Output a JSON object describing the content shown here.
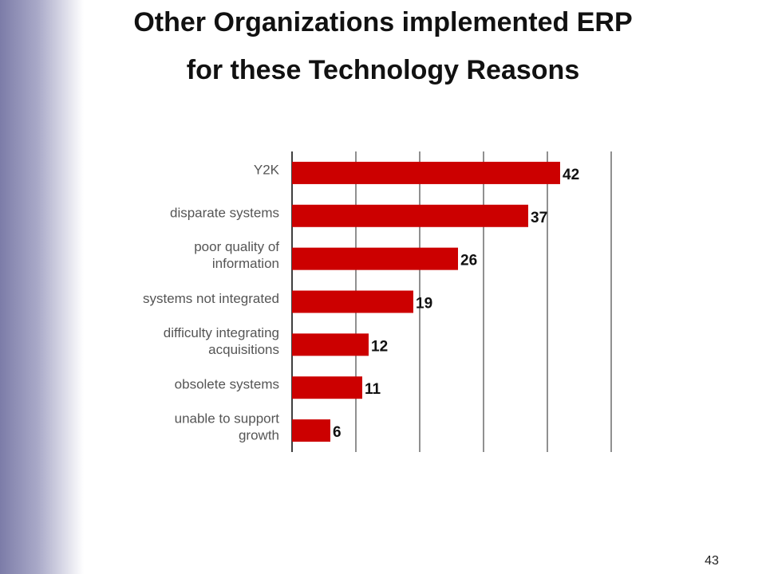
{
  "chart_data": {
    "type": "bar",
    "orientation": "horizontal",
    "title": "Other Organizations implemented ERP\nfor these Technology Reasons",
    "categories": [
      "Y2K",
      "disparate systems",
      "poor quality of\ninformation",
      "systems not integrated",
      "difficulty integrating\nacquisitions",
      "obsolete systems",
      "unable to support\ngrowth"
    ],
    "values": [
      42,
      37,
      26,
      19,
      12,
      11,
      6
    ],
    "color": "#cc0000",
    "xlim": [
      0,
      50
    ],
    "xticks": [
      0,
      10,
      20,
      30,
      40,
      50
    ],
    "grid": true
  },
  "slide_number": 43
}
